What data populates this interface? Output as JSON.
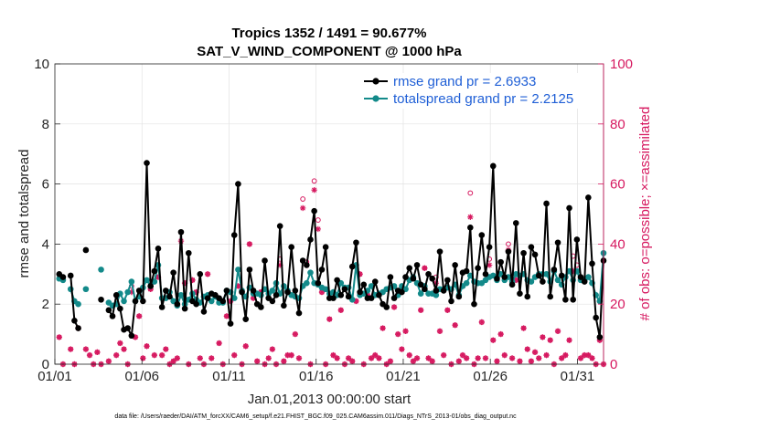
{
  "chart_data": {
    "type": "line",
    "title": "Tropics 1352 / 1491 = 90.677%",
    "subtitle": "SAT_V_WIND_COMPONENT @ 1000 hPa",
    "xlabel": "Jan.01,2013 00:00:00 start",
    "ylabel": "rmse and totalspread",
    "y2label": "# of obs: o=possible; ×=assimilated",
    "footnote": "data file: /Users/raeder/DAI/ATM_forcXX/CAM6_setup/f.e21.FHIST_BGC.f09_025.CAM6assim.011/Diags_NTrS_2013-01/obs_diag_output.nc",
    "xlim": [
      0,
      31.5
    ],
    "ylim": [
      0,
      10
    ],
    "y2lim": [
      0,
      100
    ],
    "xticks": [
      0,
      5,
      10,
      15,
      20,
      25,
      30
    ],
    "xtick_labels": [
      "01/01",
      "01/06",
      "01/11",
      "01/16",
      "01/21",
      "01/26",
      "01/31"
    ],
    "yticks": [
      0,
      2,
      4,
      6,
      8,
      10
    ],
    "y2ticks": [
      0,
      20,
      40,
      60,
      80,
      100
    ],
    "grid": true,
    "legend_location": "top-right",
    "colors": {
      "rmse": "#000000",
      "spread": "#138a8a",
      "obs": "#d6185f",
      "legend_text": "#1f5fd6"
    },
    "series": [
      {
        "name": "rmse grand pr = 2.6933",
        "axis": "left",
        "values": [
          3.0,
          2.9,
          null,
          2.95,
          1.45,
          1.2,
          null,
          3.8,
          null,
          null,
          null,
          2.15,
          null,
          1.8,
          1.6,
          2.3,
          1.85,
          1.15,
          1.2,
          0.95,
          2.1,
          2.45,
          2.1,
          6.7,
          2.6,
          3.1,
          3.85,
          1.9,
          2.45,
          2.25,
          3.05,
          2.0,
          4.4,
          1.85,
          3.7,
          2.1,
          2.0,
          3.0,
          1.75,
          2.2,
          2.35,
          2.3,
          2.2,
          2.1,
          2.45,
          1.35,
          4.3,
          6.0,
          2.4,
          1.5,
          3.15,
          2.45,
          2.0,
          1.9,
          3.45,
          2.2,
          2.1,
          2.3,
          4.6,
          1.95,
          2.4,
          3.9,
          2.45,
          1.7,
          3.45,
          3.3,
          4.15,
          5.1,
          2.7,
          3.15,
          3.9,
          2.2,
          2.2,
          2.8,
          2.3,
          2.5,
          2.25,
          3.25,
          4.05,
          2.4,
          2.65,
          2.2,
          2.2,
          2.75,
          2.3,
          2.0,
          1.9,
          2.9,
          2.2,
          2.45,
          2.4,
          2.9,
          3.2,
          2.85,
          3.3,
          2.65,
          2.5,
          3.0,
          2.85,
          2.45,
          3.75,
          2.45,
          2.8,
          2.1,
          3.3,
          2.25,
          3.05,
          3.1,
          4.55,
          2.0,
          3.2,
          4.3,
          3.0,
          3.9,
          6.6,
          2.85,
          3.4,
          2.9,
          3.75,
          2.65,
          4.7,
          2.35,
          3.7,
          2.25,
          3.9,
          3.65,
          2.95,
          2.75,
          5.35,
          2.25,
          3.15,
          4.05,
          2.95,
          2.15,
          5.2,
          2.15,
          4.15,
          2.9,
          2.75,
          5.55,
          3.35,
          1.55,
          0.9,
          3.45
        ]
      },
      {
        "name": "totalspread grand pr = 2.2125",
        "axis": "left",
        "values": [
          2.85,
          2.8,
          null,
          2.5,
          2.1,
          2.0,
          null,
          2.5,
          null,
          null,
          null,
          3.15,
          null,
          2.05,
          1.95,
          2.0,
          2.35,
          2.1,
          2.4,
          2.75,
          2.1,
          2.25,
          2.55,
          2.8,
          2.6,
          2.75,
          3.3,
          2.2,
          2.2,
          2.4,
          2.1,
          1.95,
          2.3,
          2.0,
          2.15,
          2.35,
          2.15,
          2.05,
          2.25,
          2.3,
          2.1,
          2.25,
          2.05,
          2.05,
          2.45,
          2.4,
          2.2,
          3.15,
          2.45,
          2.25,
          2.55,
          2.35,
          2.35,
          2.3,
          2.5,
          2.35,
          2.45,
          2.7,
          2.35,
          2.6,
          2.45,
          2.3,
          2.25,
          2.2,
          2.6,
          2.7,
          3.05,
          2.7,
          2.65,
          2.55,
          2.5,
          2.35,
          2.4,
          2.3,
          2.7,
          2.55,
          2.55,
          2.15,
          3.3,
          2.3,
          2.35,
          2.45,
          2.6,
          2.3,
          2.35,
          2.4,
          2.5,
          2.55,
          2.6,
          2.3,
          2.6,
          2.5,
          2.8,
          2.9,
          2.7,
          2.35,
          2.6,
          2.35,
          2.35,
          2.3,
          2.5,
          2.5,
          2.55,
          2.5,
          2.65,
          2.3,
          2.6,
          2.7,
          2.95,
          2.75,
          2.7,
          2.7,
          2.8,
          2.9,
          2.95,
          2.8,
          3.0,
          2.8,
          2.9,
          2.75,
          3.0,
          2.95,
          3.0,
          2.8,
          2.75,
          2.9,
          3.0,
          3.0,
          3.0,
          2.75,
          3.1,
          2.8,
          2.65,
          2.9,
          3.1,
          2.8,
          3.1,
          2.8,
          2.8,
          2.9,
          2.7,
          2.3,
          2.1,
          3.7
        ]
      },
      {
        "name": "possible",
        "axis": "right",
        "marker": "o",
        "values": [
          9,
          0,
          null,
          5,
          0,
          12,
          null,
          5,
          3,
          0,
          4,
          0,
          null,
          1,
          16,
          3,
          7,
          5,
          0,
          26,
          9,
          16,
          2,
          6,
          25,
          3,
          29,
          3,
          5,
          0,
          1,
          2,
          44,
          27,
          0,
          28,
          24,
          2,
          0,
          30,
          2,
          23,
          7,
          0,
          16,
          21,
          3,
          26,
          0,
          6,
          40,
          22,
          1,
          24,
          0,
          2,
          5,
          0,
          35,
          1,
          3,
          3,
          10,
          2,
          55,
          34,
          0,
          61,
          48,
          24,
          0,
          15,
          3,
          2,
          18,
          0,
          2,
          1,
          21,
          30,
          0,
          23,
          2,
          3,
          2,
          12,
          0,
          1,
          19,
          10,
          5,
          11,
          3,
          1,
          2,
          18,
          32,
          2,
          1,
          29,
          11,
          3,
          18,
          0,
          13,
          1,
          3,
          2,
          57,
          0,
          2,
          14,
          2,
          35,
          8,
          1,
          10,
          3,
          40,
          2,
          28,
          1,
          12,
          5,
          1,
          4,
          2,
          9,
          3,
          8,
          0,
          11,
          2,
          3,
          8,
          36,
          33,
          2,
          3,
          3,
          2,
          0,
          8,
          0
        ]
      },
      {
        "name": "assimilated",
        "axis": "right",
        "marker": "*",
        "values": [
          9,
          0,
          null,
          5,
          0,
          12,
          null,
          5,
          3,
          0,
          4,
          0,
          null,
          1,
          16,
          3,
          7,
          5,
          0,
          24,
          9,
          16,
          2,
          6,
          25,
          3,
          29,
          3,
          5,
          0,
          1,
          2,
          41,
          27,
          0,
          28,
          24,
          2,
          0,
          30,
          2,
          23,
          7,
          0,
          16,
          21,
          3,
          26,
          0,
          6,
          40,
          22,
          1,
          24,
          0,
          2,
          5,
          0,
          33,
          1,
          3,
          3,
          10,
          2,
          52,
          33,
          0,
          58,
          45,
          24,
          0,
          15,
          3,
          2,
          18,
          0,
          2,
          1,
          21,
          30,
          0,
          23,
          2,
          3,
          2,
          12,
          0,
          1,
          19,
          10,
          5,
          11,
          3,
          1,
          2,
          18,
          32,
          2,
          1,
          27,
          11,
          3,
          18,
          0,
          13,
          1,
          3,
          2,
          49,
          0,
          2,
          14,
          2,
          33,
          8,
          1,
          10,
          3,
          38,
          2,
          28,
          1,
          12,
          5,
          1,
          4,
          2,
          9,
          3,
          8,
          0,
          11,
          2,
          3,
          8,
          31,
          31,
          2,
          3,
          3,
          2,
          0,
          8,
          0
        ]
      }
    ]
  }
}
